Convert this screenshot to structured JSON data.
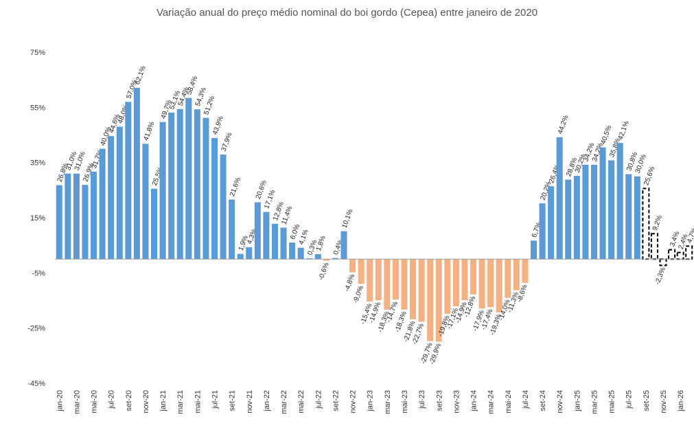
{
  "chart_data": {
    "type": "bar",
    "title": "Variação anual do preço médio nominal do boi gordo (Cepea) entre janeiro de 2020",
    "xlabel": "",
    "ylabel": "",
    "ylim": [
      -45,
      75
    ],
    "yticks": [
      "75%",
      "55%",
      "35%",
      "15%",
      "-5%",
      "-25%",
      "-45%"
    ],
    "ytick_values": [
      75,
      55,
      35,
      15,
      -5,
      -25,
      -45
    ],
    "grid": false,
    "legend": "none",
    "colors": {
      "positive": "#5b9bd5",
      "negative": "#f4b183",
      "projection_border": "#000000"
    },
    "x_tick_labels": [
      "jan-20",
      "mar-20",
      "mai-20",
      "jul-20",
      "set-20",
      "nov-20",
      "jan-21",
      "mar-21",
      "mai-21",
      "jul-21",
      "set-21",
      "nov-21",
      "jan-22",
      "mar-22",
      "mai-22",
      "jul-22",
      "set-22",
      "nov-22",
      "jan-23",
      "mar-23",
      "mai-23",
      "jul-23",
      "set-23",
      "nov-23",
      "jan-24",
      "mar-24",
      "mai-24",
      "jul-24",
      "set-24",
      "nov-24",
      "jan-25",
      "mar-25",
      "mai-25",
      "jul-25",
      "set-25",
      "nov-25",
      "jan-26"
    ],
    "categories": [
      "jan-20",
      "fev-20",
      "mar-20",
      "abr-20",
      "mai-20",
      "jun-20",
      "jul-20",
      "ago-20",
      "set-20",
      "out-20",
      "nov-20",
      "dez-20",
      "jan-21",
      "fev-21",
      "mar-21",
      "abr-21",
      "mai-21",
      "jun-21",
      "jul-21",
      "ago-21",
      "set-21",
      "out-21",
      "nov-21",
      "dez-21",
      "jan-22",
      "fev-22",
      "mar-22",
      "abr-22",
      "mai-22",
      "jun-22",
      "jul-22",
      "ago-22",
      "set-22",
      "out-22",
      "nov-22",
      "dez-22",
      "jan-23",
      "fev-23",
      "mar-23",
      "abr-23",
      "mai-23",
      "jun-23",
      "jul-23",
      "ago-23",
      "set-23",
      "out-23",
      "nov-23",
      "dez-23",
      "jan-24",
      "fev-24",
      "mar-24",
      "abr-24",
      "mai-24",
      "jun-24",
      "jul-24",
      "ago-24",
      "set-24",
      "out-24",
      "nov-24",
      "dez-24",
      "jan-25",
      "fev-25",
      "mar-25",
      "abr-25",
      "mai-25",
      "jun-25",
      "jul-25",
      "ago-25",
      "set-25",
      "out-25",
      "nov-25",
      "dez-25",
      "jan-26",
      "fev-26"
    ],
    "values": [
      26.8,
      31.0,
      31.0,
      26.9,
      31.7,
      40.0,
      44.6,
      48.0,
      57.0,
      62.1,
      41.8,
      25.5,
      49.7,
      53.1,
      54.4,
      58.4,
      54.3,
      51.2,
      43.9,
      37.9,
      21.6,
      1.9,
      4.3,
      20.6,
      17.1,
      12.8,
      11.4,
      6.0,
      4.1,
      0.3,
      1.8,
      -0.6,
      0.4,
      10.1,
      -4.8,
      -9.0,
      -15.4,
      -14.9,
      -18.3,
      -14.7,
      -18.3,
      -21.8,
      -22.7,
      -29.7,
      -29.9,
      -19.8,
      -17.1,
      -14.9,
      -12.8,
      -17.9,
      -17.4,
      -19.3,
      -14.0,
      -11.3,
      -8.6,
      6.7,
      20.2,
      26.4,
      44.2,
      28.8,
      30.2,
      34.2,
      34.2,
      40.5,
      35.8,
      42.1,
      30.8,
      30.0,
      25.6,
      9.2,
      -2.3,
      3.4,
      2.4,
      4.7
    ],
    "labels": [
      "26,8%",
      "31,0%",
      "31,0%",
      "26,9%",
      "31,7%",
      "40,0%",
      "44,6%",
      "48,0%",
      "57,0%",
      "62,1%",
      "41,8%",
      "25,5%",
      "49,7%",
      "53,1%",
      "54,4%",
      "58,4%",
      "54,3%",
      "51,2%",
      "43,9%",
      "37,9%",
      "21,6%",
      "1,9%",
      "4,3%",
      "20,6%",
      "17,1%",
      "12,8%",
      "11,4%",
      "6,0%",
      "4,1%",
      "0,3%",
      "1,8%",
      "-0,6%",
      "0,4%",
      "10,1%",
      "-4,8%",
      "-9,0%",
      "-15,4%",
      "-14,9%",
      "-18,3%",
      "-14,7%",
      "-18,3%",
      "-21,8%",
      "-22,7%",
      "-29,7%",
      "-29,9%",
      "-19,8%",
      "-17,1%",
      "-14,9%",
      "-12,8%",
      "-17,9%",
      "-17,4%",
      "-19,3%",
      "-14,0%",
      "-11,3%",
      "-8,6%",
      "6,7%",
      "20,2%",
      "26,4%",
      "44,2%",
      "28,8%",
      "30,2%",
      "34,2%",
      "34,2%",
      "40,5%",
      "35,8%",
      "42,1%",
      "30,8%",
      "30,0%",
      "25,6%",
      "9,2%",
      "-2,3%",
      "3,4%",
      "2,4%",
      "4,7%"
    ],
    "projected_from": "set-25"
  }
}
